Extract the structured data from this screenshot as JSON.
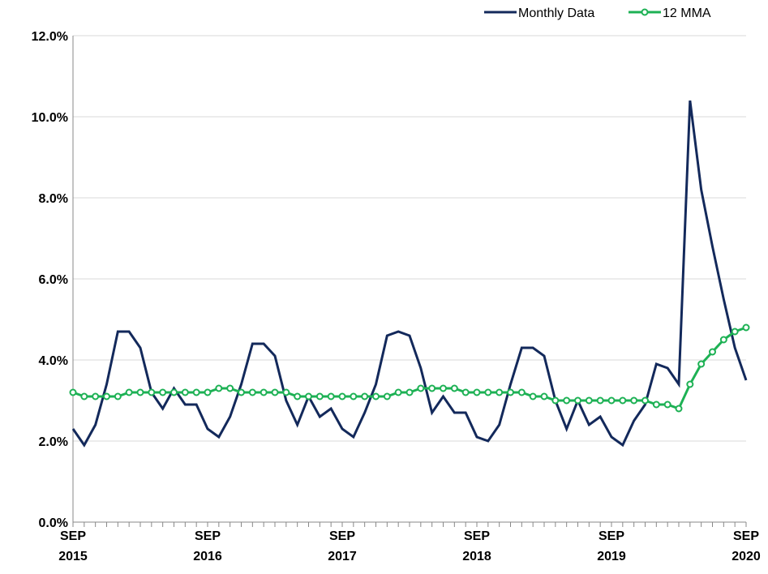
{
  "chart_data": {
    "type": "line",
    "categories": [
      "SEP 2015",
      null,
      null,
      null,
      null,
      null,
      null,
      null,
      null,
      null,
      null,
      null,
      "SEP 2016",
      null,
      null,
      null,
      null,
      null,
      null,
      null,
      null,
      null,
      null,
      null,
      "SEP 2017",
      null,
      null,
      null,
      null,
      null,
      null,
      null,
      null,
      null,
      null,
      null,
      "SEP 2018",
      null,
      null,
      null,
      null,
      null,
      null,
      null,
      null,
      null,
      null,
      null,
      "SEP 2019",
      null,
      null,
      null,
      null,
      null,
      null,
      null,
      null,
      null,
      null,
      null,
      "SEP 2020"
    ],
    "series": [
      {
        "name": "Monthly Data",
        "color": "#13295b",
        "marker": false,
        "values": [
          2.3,
          1.9,
          2.4,
          3.4,
          4.7,
          4.7,
          4.3,
          3.2,
          2.8,
          3.3,
          2.9,
          2.9,
          2.3,
          2.1,
          2.6,
          3.4,
          4.4,
          4.4,
          4.1,
          3.0,
          2.4,
          3.1,
          2.6,
          2.8,
          2.3,
          2.1,
          2.7,
          3.4,
          4.6,
          4.7,
          4.6,
          3.8,
          2.7,
          3.1,
          2.7,
          2.7,
          2.1,
          2.0,
          2.4,
          3.4,
          4.3,
          4.3,
          4.1,
          3.0,
          2.3,
          3.0,
          2.4,
          2.6,
          2.1,
          1.9,
          2.5,
          2.9,
          3.9,
          3.8,
          3.4,
          10.4,
          8.2,
          6.8,
          5.5,
          4.3,
          3.5
        ]
      },
      {
        "name": "12 MMA",
        "color": "#1db154",
        "marker": true,
        "values": [
          3.2,
          3.1,
          3.1,
          3.1,
          3.1,
          3.2,
          3.2,
          3.2,
          3.2,
          3.2,
          3.2,
          3.2,
          3.2,
          3.3,
          3.3,
          3.2,
          3.2,
          3.2,
          3.2,
          3.2,
          3.1,
          3.1,
          3.1,
          3.1,
          3.1,
          3.1,
          3.1,
          3.1,
          3.1,
          3.2,
          3.2,
          3.3,
          3.3,
          3.3,
          3.3,
          3.2,
          3.2,
          3.2,
          3.2,
          3.2,
          3.2,
          3.1,
          3.1,
          3.0,
          3.0,
          3.0,
          3.0,
          3.0,
          3.0,
          3.0,
          3.0,
          3.0,
          2.9,
          2.9,
          2.8,
          3.4,
          3.9,
          4.2,
          4.5,
          4.7,
          4.8
        ]
      }
    ],
    "ylim": [
      0,
      12
    ],
    "yticks": [
      {
        "value": 0,
        "label": "0.0%"
      },
      {
        "value": 2,
        "label": "2.0%"
      },
      {
        "value": 4,
        "label": "4.0%"
      },
      {
        "value": 6,
        "label": "6.0%"
      },
      {
        "value": 8,
        "label": "8.0%"
      },
      {
        "value": 10,
        "label": "10.0%"
      },
      {
        "value": 12,
        "label": "12.0%"
      }
    ],
    "grid": true,
    "legend": "top-right"
  }
}
